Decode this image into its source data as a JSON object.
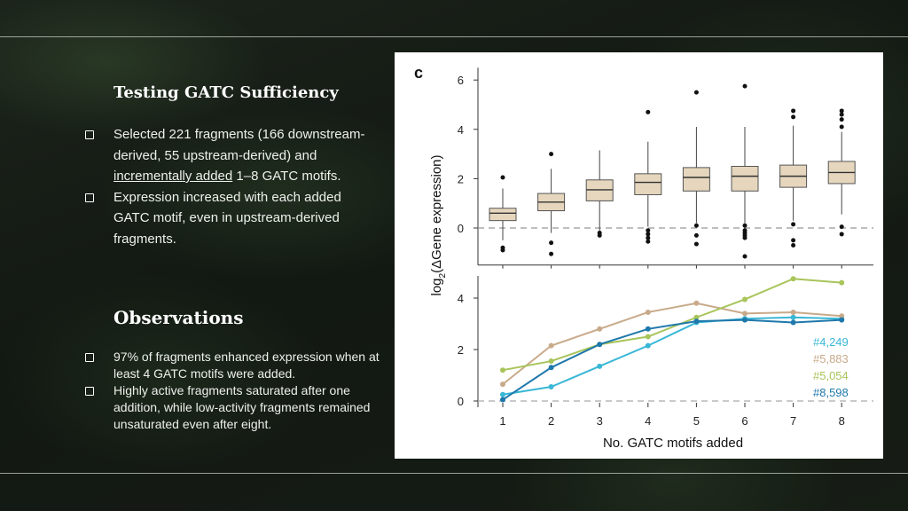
{
  "slide": {
    "section1_title": "Testing GATC Sufficiency",
    "section1_bullets": [
      {
        "parts": [
          "Selected 221 fragments (166 downstream-derived, 55 upstream-derived) and ",
          "incrementally added",
          " 1–8 GATC motifs."
        ]
      },
      {
        "text": "Expression increased with each added GATC motif, even in upstream-derived fragments."
      }
    ],
    "section2_title": "Observations",
    "section2_bullets": [
      "97% of fragments enhanced expression when at least 4 GATC motifs were added.",
      "Highly active fragments saturated after one addition, while low-activity fragments remained unsaturated even after eight."
    ],
    "bullet_icon": "checkbox-outline-icon"
  },
  "figure": {
    "panel_label": "c",
    "ylabel_prefix": "log",
    "ylabel_sub": "2",
    "ylabel_rest": "(ΔGene expression)",
    "xlabel": "No. GATC motifs added"
  },
  "chart_data": [
    {
      "type": "box",
      "categories": [
        "1",
        "2",
        "3",
        "4",
        "5",
        "6",
        "7",
        "8"
      ],
      "ylim": [
        -1.5,
        6.5
      ],
      "yticks": [
        0,
        2,
        4,
        6
      ],
      "reference_line": 0,
      "box_color": "#e5d6bd",
      "boxes": [
        {
          "q1": 0.3,
          "median": 0.6,
          "q3": 0.8,
          "whisker_low": -0.5,
          "whisker_high": 1.6,
          "outliers": [
            2.05,
            -0.8,
            -0.9
          ]
        },
        {
          "q1": 0.7,
          "median": 1.05,
          "q3": 1.4,
          "whisker_low": -0.2,
          "whisker_high": 2.4,
          "outliers": [
            3.0,
            -0.6,
            -1.05
          ]
        },
        {
          "q1": 1.1,
          "median": 1.55,
          "q3": 1.95,
          "whisker_low": -0.1,
          "whisker_high": 3.15,
          "outliers": [
            -0.2,
            -0.3
          ]
        },
        {
          "q1": 1.35,
          "median": 1.85,
          "q3": 2.2,
          "whisker_low": 0.05,
          "whisker_high": 3.5,
          "outliers": [
            4.7,
            -0.1,
            -0.25,
            -0.4,
            -0.55
          ]
        },
        {
          "q1": 1.5,
          "median": 2.05,
          "q3": 2.45,
          "whisker_low": 0.2,
          "whisker_high": 4.1,
          "outliers": [
            5.5,
            0.1,
            -0.3,
            -0.65
          ]
        },
        {
          "q1": 1.5,
          "median": 2.1,
          "q3": 2.5,
          "whisker_low": 0.2,
          "whisker_high": 4.1,
          "outliers": [
            5.75,
            0.1,
            -0.1,
            -0.2,
            -0.3,
            -0.4,
            -1.15
          ]
        },
        {
          "q1": 1.65,
          "median": 2.1,
          "q3": 2.55,
          "whisker_low": 0.3,
          "whisker_high": 4.15,
          "outliers": [
            4.75,
            4.5,
            0.15,
            -0.5,
            -0.7
          ]
        },
        {
          "q1": 1.8,
          "median": 2.25,
          "q3": 2.7,
          "whisker_low": 0.55,
          "whisker_high": 3.9,
          "outliers": [
            4.75,
            4.6,
            4.4,
            4.1,
            0.05,
            -0.25
          ]
        }
      ]
    },
    {
      "type": "line",
      "x": [
        1,
        2,
        3,
        4,
        5,
        6,
        7,
        8
      ],
      "ylim": [
        0,
        4.8
      ],
      "yticks": [
        0,
        2,
        4
      ],
      "reference_line": 0,
      "series": [
        {
          "name": "#4,249",
          "color": "#3ab7d6",
          "values": [
            0.25,
            0.55,
            1.35,
            2.15,
            3.05,
            3.2,
            3.25,
            3.2
          ]
        },
        {
          "name": "#5,883",
          "color": "#c8aa8a",
          "values": [
            0.65,
            2.15,
            2.8,
            3.45,
            3.8,
            3.4,
            3.45,
            3.3
          ]
        },
        {
          "name": "#5,054",
          "color": "#a8c45a",
          "values": [
            1.2,
            1.55,
            2.2,
            2.5,
            3.25,
            3.95,
            4.75,
            4.6
          ]
        },
        {
          "name": "#8,598",
          "color": "#1f78ab",
          "values": [
            0.05,
            1.3,
            2.2,
            2.8,
            3.1,
            3.15,
            3.05,
            3.15
          ]
        }
      ]
    }
  ]
}
